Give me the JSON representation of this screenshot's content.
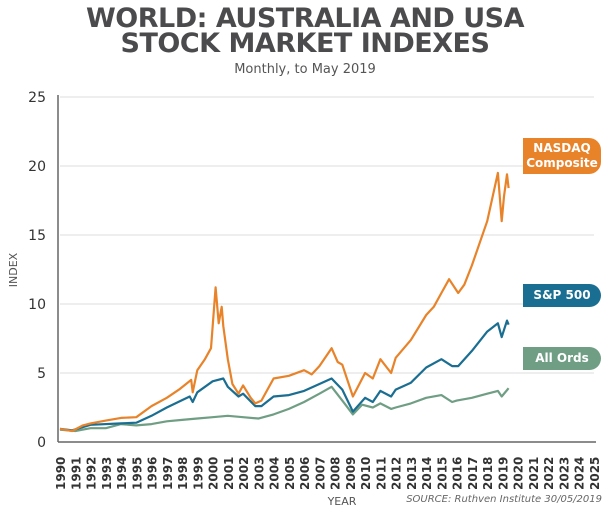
{
  "chart_data": {
    "type": "line",
    "title_line1": "WORLD: AUSTRALIA AND USA",
    "title_line2": "STOCK MARKET INDEXES",
    "subtitle": "Monthly, to May 2019",
    "xlabel": "YEAR",
    "ylabel": "INDEX",
    "xlim": [
      1990,
      2025
    ],
    "ylim": [
      0,
      25
    ],
    "yticks": [
      0,
      5,
      10,
      15,
      20,
      25
    ],
    "xticks": [
      "1990",
      "1991",
      "1992",
      "1993",
      "1994",
      "1995",
      "1996",
      "1997",
      "1998",
      "1999",
      "2000",
      "2001",
      "2002",
      "2003",
      "2004",
      "2005",
      "2006",
      "2007",
      "2008",
      "2009",
      "2010",
      "2011",
      "2012",
      "2013",
      "2014",
      "2015",
      "2016",
      "2017",
      "2018",
      "2019",
      "2020",
      "2021",
      "2022",
      "2023",
      "2024",
      "2025"
    ],
    "grid": true,
    "legend": "right, inline tags",
    "source": "SOURCE: Ruthven Institute 30/05/2019",
    "series": [
      {
        "name": "NASDAQ Composite",
        "label_lines": [
          "NASDAQ",
          "Composite"
        ],
        "color": "#e8832a",
        "x": [
          1990,
          1990.8,
          1991.5,
          1992,
          1993,
          1994,
          1995,
          1996,
          1997,
          1997.8,
          1998.6,
          1998.7,
          1999,
          1999.5,
          1999.9,
          2000.2,
          2000.4,
          2000.6,
          2000.7,
          2001,
          2001.3,
          2001.7,
          2002,
          2002.5,
          2002.8,
          2003.2,
          2004,
          2005,
          2006,
          2006.5,
          2007,
          2007.8,
          2008.2,
          2008.5,
          2009.2,
          2010,
          2010.5,
          2011,
          2011.7,
          2012,
          2013,
          2014,
          2014.5,
          2015,
          2015.5,
          2016.1,
          2016.5,
          2017,
          2018,
          2018.7,
          2018.95,
          2019.1,
          2019.3,
          2019.4
        ],
        "y": [
          0.95,
          0.8,
          1.2,
          1.35,
          1.55,
          1.75,
          1.8,
          2.6,
          3.2,
          3.8,
          4.5,
          3.6,
          5.2,
          6.0,
          6.8,
          11.2,
          8.6,
          9.8,
          8.4,
          6.0,
          4.2,
          3.5,
          4.1,
          3.2,
          2.8,
          3.0,
          4.6,
          4.8,
          5.2,
          4.9,
          5.5,
          6.8,
          5.8,
          5.6,
          3.3,
          5.0,
          4.6,
          6.0,
          5.0,
          6.1,
          7.4,
          9.2,
          9.8,
          10.8,
          11.8,
          10.8,
          11.4,
          12.8,
          16.0,
          19.5,
          16.0,
          17.8,
          19.4,
          18.4
        ]
      },
      {
        "name": "S&P 500",
        "label_lines": [
          "S&P 500"
        ],
        "color": "#1a6e91",
        "x": [
          1990,
          1990.8,
          1992,
          1994,
          1995,
          1996,
          1997,
          1998.5,
          1998.7,
          1999,
          2000,
          2000.7,
          2001,
          2001.7,
          2002,
          2002.8,
          2003.2,
          2004,
          2005,
          2006,
          2007,
          2007.8,
          2008.5,
          2009.2,
          2010,
          2010.5,
          2011,
          2011.7,
          2012,
          2013,
          2014,
          2015,
          2015.7,
          2016.1,
          2017,
          2018,
          2018.7,
          2018.95,
          2019.3,
          2019.4
        ],
        "y": [
          0.95,
          0.85,
          1.25,
          1.35,
          1.4,
          1.9,
          2.5,
          3.3,
          2.9,
          3.6,
          4.4,
          4.6,
          4.0,
          3.3,
          3.5,
          2.6,
          2.6,
          3.3,
          3.4,
          3.7,
          4.2,
          4.6,
          3.8,
          2.2,
          3.2,
          2.9,
          3.7,
          3.3,
          3.8,
          4.3,
          5.4,
          6.0,
          5.5,
          5.5,
          6.6,
          8.0,
          8.6,
          7.6,
          8.8,
          8.5
        ]
      },
      {
        "name": "All Ords",
        "label_lines": [
          "All Ords"
        ],
        "color": "#6f9e84",
        "x": [
          1990,
          1991,
          1992,
          1993,
          1994,
          1995,
          1996,
          1997,
          1998,
          1999,
          2000,
          2001,
          2002,
          2003,
          2004,
          2005,
          2006,
          2007,
          2007.8,
          2008.5,
          2009.2,
          2009.8,
          2010.5,
          2011,
          2011.7,
          2012,
          2013,
          2014,
          2015,
          2015.7,
          2016,
          2017,
          2018,
          2018.7,
          2018.95,
          2019.4
        ],
        "y": [
          0.9,
          0.8,
          1.0,
          1.0,
          1.3,
          1.2,
          1.3,
          1.5,
          1.6,
          1.7,
          1.8,
          1.9,
          1.8,
          1.7,
          2.0,
          2.4,
          2.9,
          3.5,
          4.0,
          3.0,
          2.0,
          2.7,
          2.5,
          2.8,
          2.4,
          2.5,
          2.8,
          3.2,
          3.4,
          2.9,
          3.0,
          3.2,
          3.5,
          3.7,
          3.3,
          3.9
        ]
      }
    ]
  }
}
